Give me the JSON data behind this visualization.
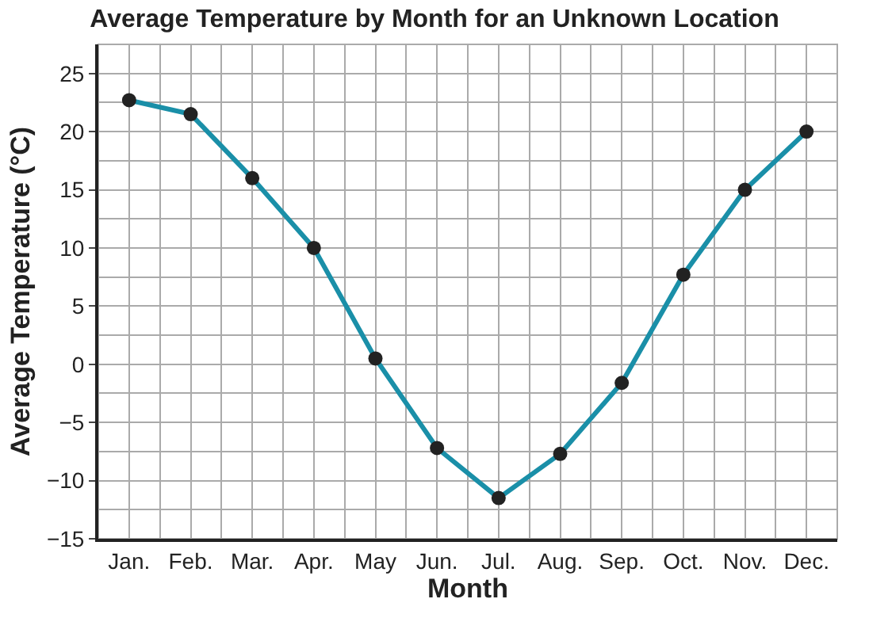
{
  "chart_data": {
    "type": "line",
    "title": "Average Temperature by Month for an Unknown Location",
    "xlabel": "Month",
    "ylabel": "Average Temperature (°C)",
    "categories": [
      "Jan.",
      "Feb.",
      "Mar.",
      "Apr.",
      "May",
      "Jun.",
      "Jul.",
      "Aug.",
      "Sep.",
      "Oct.",
      "Nov.",
      "Dec."
    ],
    "series": [
      {
        "color": "#1a8fa8",
        "values": [
          22.7,
          21.5,
          16.0,
          10.0,
          0.5,
          -7.2,
          -11.5,
          -7.7,
          -1.6,
          7.7,
          15.0,
          20.0
        ]
      }
    ],
    "ylim": [
      -15,
      27.5
    ],
    "yticks": [
      -15,
      -10,
      -5,
      0,
      5,
      10,
      15,
      20,
      25
    ],
    "grid": true,
    "marker": "circle",
    "line_style": "solid"
  }
}
